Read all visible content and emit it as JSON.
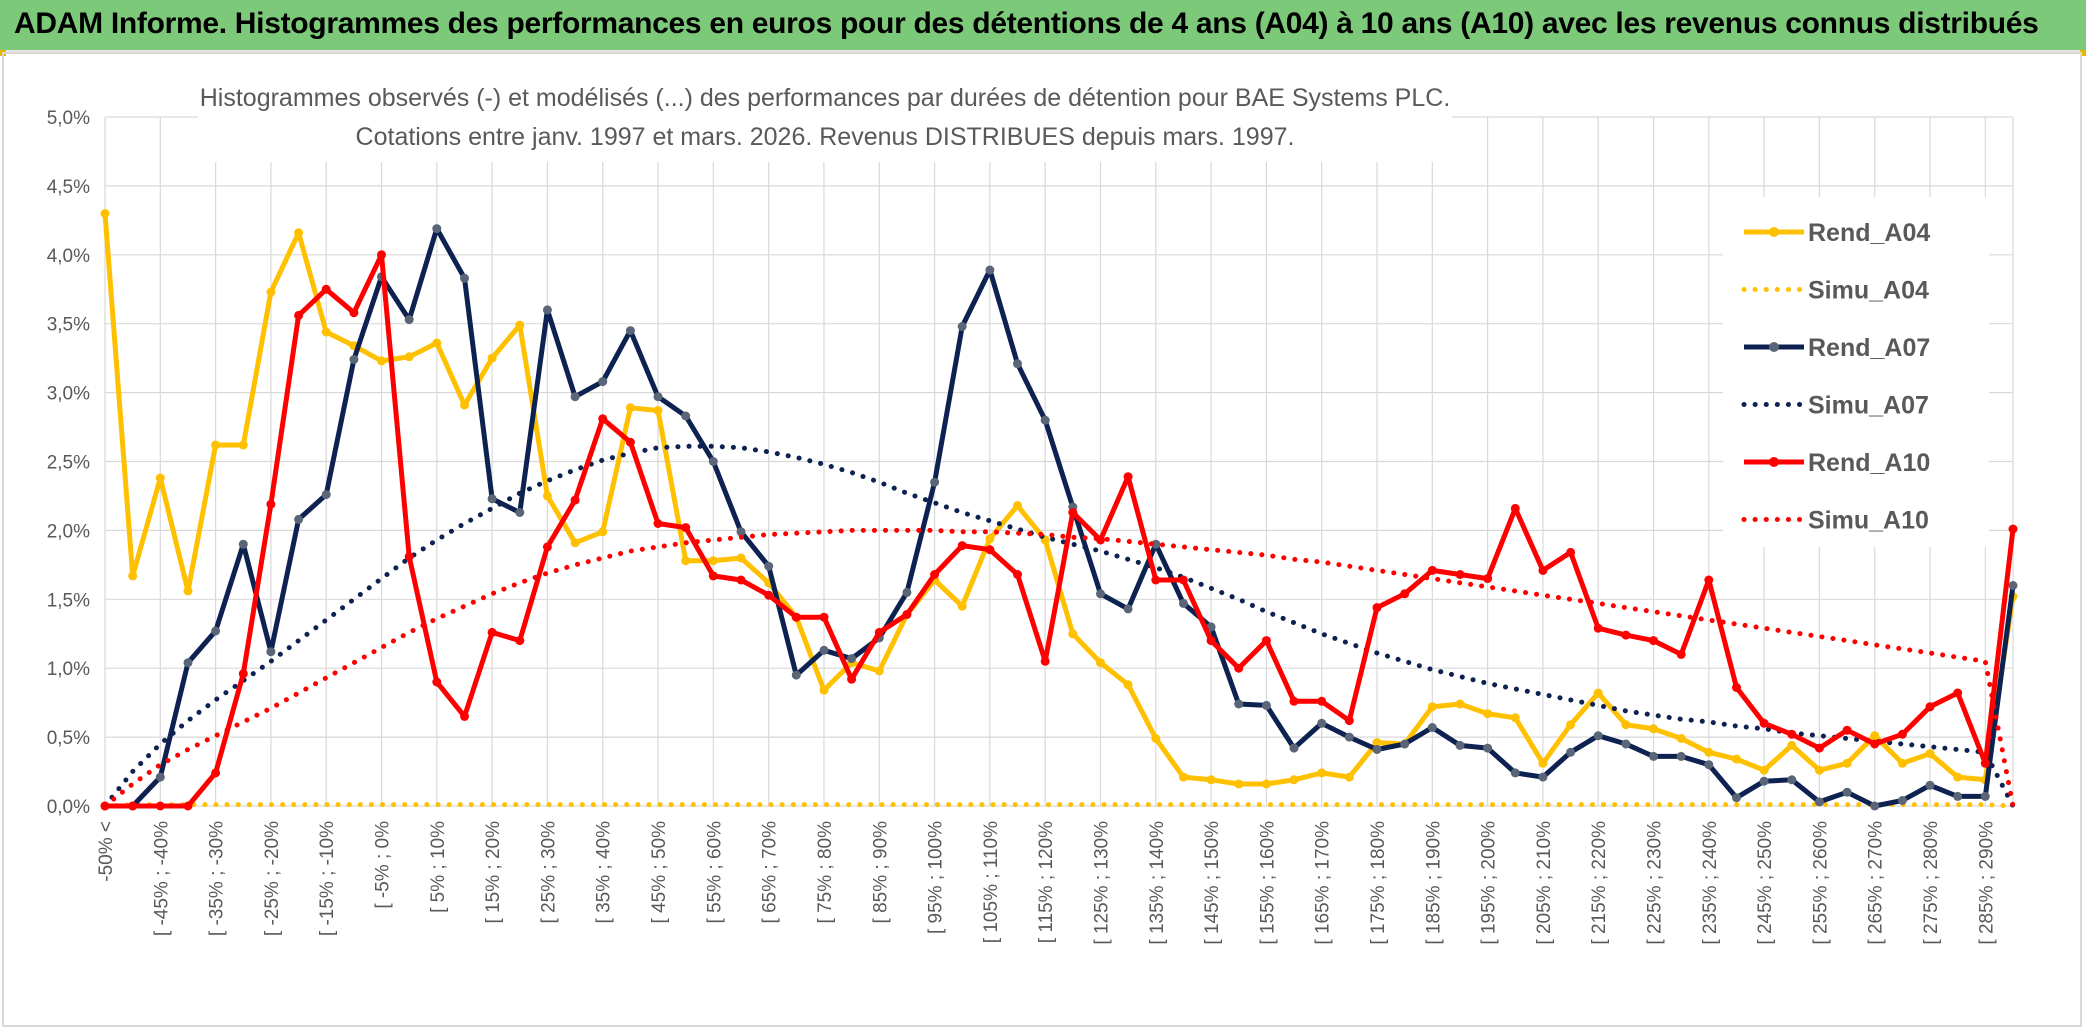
{
  "banner": {
    "title": "ADAM Informe. Histogrammes des performances en euros pour des détentions de 4 ans (A04) à 10 ans (A10) avec les revenus connus distribués"
  },
  "colors": {
    "banner_bg": "#7dc97a",
    "a04": "#ffc000",
    "a07": "#0e2251",
    "a10": "#ff0000",
    "grid": "#d9d9d9",
    "text": "#595959"
  },
  "chart_data": {
    "type": "line",
    "title": "Histogrammes observés (-) et modélisés (...) des performances par durées de détention pour BAE Systems PLC.",
    "subtitle": "Cotations entre janv. 1997 et mars. 2026. Revenus DISTRIBUES depuis mars. 1997.",
    "xlabel": "",
    "ylabel": "",
    "ylim": [
      0,
      5
    ],
    "y_ticks": [
      "0,0%",
      "0,5%",
      "1,0%",
      "1,5%",
      "2,0%",
      "2,5%",
      "3,0%",
      "3,5%",
      "4,0%",
      "4,5%",
      "5,0%"
    ],
    "grid": true,
    "legend_position": "right",
    "x_tick_labels": [
      "-50% <",
      "[ -45% ; -40%",
      "[ -35% ; -30%",
      "[ -25% ; -20%",
      "[ -15% ; -10%",
      "[ -5% ; 0%",
      "[ 5% ; 10%",
      "[ 15% ; 20%",
      "[ 25% ; 30%",
      "[ 35% ; 40%",
      "[ 45% ; 50%",
      "[ 55% ; 60%",
      "[ 65% ; 70%",
      "[ 75% ; 80%",
      "[ 85% ; 90%",
      "[ 95% ; 100%",
      "[ 105% ; 110%",
      "[ 115% ; 120%",
      "[ 125% ; 130%",
      "[ 135% ; 140%",
      "[ 145% ; 150%",
      "[ 155% ; 160%",
      "[ 165% ; 170%",
      "[ 175% ; 180%",
      "[ 185% ; 190%",
      "[ 195% ; 200%",
      "[ 205% ; 210%",
      "[ 215% ; 220%",
      "[ 225% ; 230%",
      "[ 235% ; 240%",
      "[ 245% ; 250%",
      "[ 255% ; 260%",
      "[ 265% ; 270%",
      "[ 275% ; 280%",
      "[ 285% ; 290%"
    ],
    "series": [
      {
        "name": "Rend_A04",
        "style": "solid",
        "color": "#ffc000",
        "values": [
          4.3,
          1.67,
          2.38,
          1.56,
          2.62,
          2.62,
          3.73,
          4.16,
          3.44,
          3.34,
          3.23,
          3.26,
          3.36,
          2.91,
          3.25,
          3.49,
          2.25,
          1.91,
          1.99,
          2.89,
          2.87,
          1.78,
          1.78,
          1.8,
          1.62,
          1.37,
          0.84,
          1.04,
          0.98,
          1.39,
          1.64,
          1.45,
          1.94,
          2.18,
          1.93,
          1.25,
          1.04,
          0.88,
          0.49,
          0.21,
          0.19,
          0.16,
          0.16,
          0.19,
          0.24,
          0.21,
          0.46,
          0.45,
          0.72,
          0.74,
          0.67,
          0.64,
          0.31,
          0.59,
          0.82,
          0.59,
          0.56,
          0.49,
          0.39,
          0.34,
          0.26,
          0.44,
          0.26,
          0.31,
          0.51,
          0.31,
          0.38,
          0.21,
          0.19,
          1.52
        ]
      },
      {
        "name": "Simu_A04",
        "style": "dotted",
        "color": "#ffc000",
        "values": [
          0.0,
          0.01,
          0.01,
          0.01,
          0.01,
          0.01,
          0.01,
          0.01,
          0.01,
          0.01,
          0.01,
          0.01,
          0.01,
          0.01,
          0.01,
          0.01,
          0.01,
          0.01,
          0.01,
          0.01,
          0.01,
          0.01,
          0.01,
          0.01,
          0.01,
          0.01,
          0.01,
          0.01,
          0.01,
          0.01,
          0.01,
          0.01,
          0.01,
          0.01,
          0.01,
          0.01,
          0.01,
          0.01,
          0.01,
          0.01,
          0.01,
          0.01,
          0.01,
          0.01,
          0.01,
          0.01,
          0.01,
          0.01,
          0.01,
          0.01,
          0.01,
          0.01,
          0.01,
          0.01,
          0.01,
          0.01,
          0.01,
          0.01,
          0.01,
          0.01,
          0.01,
          0.01,
          0.01,
          0.01,
          0.01,
          0.01,
          0.01,
          0.01,
          0.01,
          0.0
        ]
      },
      {
        "name": "Rend_A07",
        "style": "solid",
        "color": "#0e2251",
        "values": [
          0.0,
          0.0,
          0.21,
          1.04,
          1.27,
          1.9,
          1.12,
          2.08,
          2.26,
          3.24,
          3.84,
          3.53,
          4.19,
          3.83,
          2.23,
          2.13,
          3.6,
          2.97,
          3.08,
          3.45,
          2.97,
          2.83,
          2.5,
          1.99,
          1.74,
          0.95,
          1.13,
          1.07,
          1.22,
          1.55,
          2.35,
          3.48,
          3.89,
          3.21,
          2.8,
          2.17,
          1.54,
          1.43,
          1.9,
          1.47,
          1.3,
          0.74,
          0.73,
          0.42,
          0.6,
          0.5,
          0.41,
          0.45,
          0.57,
          0.44,
          0.42,
          0.24,
          0.21,
          0.39,
          0.51,
          0.45,
          0.36,
          0.36,
          0.3,
          0.06,
          0.18,
          0.19,
          0.03,
          0.1,
          0.0,
          0.04,
          0.15,
          0.07,
          0.07,
          1.6
        ]
      },
      {
        "name": "Simu_A07",
        "style": "dotted",
        "color": "#0e2251",
        "values": [
          0.0,
          0.25,
          0.45,
          0.62,
          0.77,
          0.91,
          1.05,
          1.2,
          1.35,
          1.5,
          1.65,
          1.8,
          1.93,
          2.05,
          2.16,
          2.27,
          2.36,
          2.44,
          2.51,
          2.56,
          2.6,
          2.61,
          2.61,
          2.6,
          2.57,
          2.53,
          2.48,
          2.42,
          2.35,
          2.27,
          2.2,
          2.13,
          2.07,
          2.01,
          1.95,
          1.9,
          1.85,
          1.79,
          1.73,
          1.66,
          1.58,
          1.5,
          1.41,
          1.33,
          1.25,
          1.18,
          1.11,
          1.05,
          0.99,
          0.94,
          0.89,
          0.85,
          0.81,
          0.77,
          0.73,
          0.69,
          0.66,
          0.63,
          0.61,
          0.58,
          0.56,
          0.53,
          0.51,
          0.49,
          0.47,
          0.45,
          0.43,
          0.41,
          0.39,
          0.0
        ]
      },
      {
        "name": "Rend_A10",
        "style": "solid",
        "color": "#ff0000",
        "values": [
          0.0,
          0.0,
          0.0,
          0.0,
          0.24,
          0.96,
          2.19,
          3.56,
          3.75,
          3.58,
          4.0,
          1.81,
          0.9,
          0.65,
          1.26,
          1.2,
          1.88,
          2.22,
          2.81,
          2.64,
          2.05,
          2.02,
          1.67,
          1.64,
          1.53,
          1.37,
          1.37,
          0.92,
          1.26,
          1.39,
          1.68,
          1.89,
          1.86,
          1.68,
          1.05,
          2.13,
          1.93,
          2.39,
          1.64,
          1.64,
          1.2,
          1.0,
          1.2,
          0.76,
          0.76,
          0.62,
          1.44,
          1.54,
          1.71,
          1.68,
          1.65,
          2.16,
          1.71,
          1.84,
          1.29,
          1.24,
          1.2,
          1.1,
          1.64,
          0.86,
          0.6,
          0.52,
          0.42,
          0.55,
          0.45,
          0.52,
          0.72,
          0.82,
          0.31,
          2.01
        ]
      },
      {
        "name": "Simu_A10",
        "style": "dotted",
        "color": "#ff0000",
        "values": [
          0.0,
          0.16,
          0.3,
          0.41,
          0.51,
          0.61,
          0.71,
          0.82,
          0.93,
          1.04,
          1.15,
          1.26,
          1.36,
          1.45,
          1.54,
          1.62,
          1.69,
          1.75,
          1.8,
          1.85,
          1.88,
          1.91,
          1.93,
          1.95,
          1.97,
          1.98,
          1.99,
          2.0,
          2.0,
          2.0,
          2.0,
          1.99,
          1.99,
          1.98,
          1.97,
          1.95,
          1.94,
          1.92,
          1.9,
          1.88,
          1.86,
          1.84,
          1.82,
          1.79,
          1.77,
          1.74,
          1.71,
          1.68,
          1.65,
          1.62,
          1.59,
          1.56,
          1.53,
          1.5,
          1.47,
          1.44,
          1.41,
          1.38,
          1.35,
          1.32,
          1.29,
          1.26,
          1.23,
          1.2,
          1.17,
          1.14,
          1.11,
          1.08,
          1.05,
          0.0
        ]
      }
    ]
  }
}
